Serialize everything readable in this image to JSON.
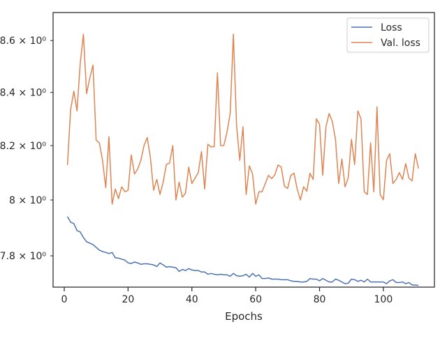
{
  "chart_data": {
    "type": "line",
    "title": "",
    "xlabel": "Epochs",
    "ylabel": "",
    "yscale": "log",
    "xlim": [
      -3.5,
      116
    ],
    "ylim": [
      7.69,
      8.71
    ],
    "grid": false,
    "legend_position": "top-right",
    "x_ticks": [
      {
        "value": 0,
        "label": "0"
      },
      {
        "value": 20,
        "label": "20"
      },
      {
        "value": 40,
        "label": "40"
      },
      {
        "value": 60,
        "label": "60"
      },
      {
        "value": 80,
        "label": "80"
      },
      {
        "value": 100,
        "label": "100"
      }
    ],
    "y_ticks": [
      {
        "value": 7.8,
        "label": "7.8 × 10⁰"
      },
      {
        "value": 8.0,
        "label": "8 × 10⁰"
      },
      {
        "value": 8.2,
        "label": "8.2 × 10⁰"
      },
      {
        "value": 8.4,
        "label": "8.4 × 10⁰"
      },
      {
        "value": 8.6,
        "label": "8.6 × 10⁰"
      }
    ],
    "x": [
      1,
      2,
      3,
      4,
      5,
      6,
      7,
      8,
      9,
      10,
      11,
      12,
      13,
      14,
      15,
      16,
      17,
      18,
      19,
      20,
      21,
      22,
      23,
      24,
      25,
      26,
      27,
      28,
      29,
      30,
      31,
      32,
      33,
      34,
      35,
      36,
      37,
      38,
      39,
      40,
      41,
      42,
      43,
      44,
      45,
      46,
      47,
      48,
      49,
      50,
      51,
      52,
      53,
      54,
      55,
      56,
      57,
      58,
      59,
      60,
      61,
      62,
      63,
      64,
      65,
      66,
      67,
      68,
      69,
      70,
      71,
      72,
      73,
      74,
      75,
      76,
      77,
      78,
      79,
      80,
      81,
      82,
      83,
      84,
      85,
      86,
      87,
      88,
      89,
      90,
      91,
      92,
      93,
      94,
      95,
      96,
      97,
      98,
      99,
      100,
      101,
      102,
      103,
      104,
      105,
      106,
      107,
      108,
      109,
      110,
      111
    ],
    "series": [
      {
        "name": "Loss",
        "color": "#4c72b0",
        "values": [
          7.94,
          7.92,
          7.915,
          7.89,
          7.885,
          7.865,
          7.85,
          7.845,
          7.84,
          7.83,
          7.82,
          7.815,
          7.812,
          7.808,
          7.812,
          7.793,
          7.792,
          7.788,
          7.785,
          7.775,
          7.773,
          7.778,
          7.775,
          7.77,
          7.772,
          7.772,
          7.77,
          7.768,
          7.762,
          7.775,
          7.768,
          7.76,
          7.762,
          7.76,
          7.758,
          7.745,
          7.752,
          7.748,
          7.755,
          7.75,
          7.748,
          7.748,
          7.743,
          7.743,
          7.735,
          7.738,
          7.735,
          7.733,
          7.735,
          7.733,
          7.733,
          7.728,
          7.738,
          7.73,
          7.728,
          7.73,
          7.735,
          7.725,
          7.738,
          7.728,
          7.733,
          7.72,
          7.72,
          7.722,
          7.718,
          7.718,
          7.718,
          7.716,
          7.716,
          7.716,
          7.712,
          7.71,
          7.71,
          7.708,
          7.708,
          7.71,
          7.72,
          7.718,
          7.718,
          7.712,
          7.72,
          7.714,
          7.708,
          7.708,
          7.718,
          7.714,
          7.708,
          7.702,
          7.704,
          7.718,
          7.716,
          7.71,
          7.714,
          7.708,
          7.718,
          7.708,
          7.708,
          7.708,
          7.708,
          7.708,
          7.702,
          7.712,
          7.716,
          7.706,
          7.706,
          7.708,
          7.702,
          7.706,
          7.698,
          7.697,
          7.696
        ]
      },
      {
        "name": "Val. loss",
        "color": "#dd8452",
        "values": [
          8.128,
          8.335,
          8.405,
          8.33,
          8.51,
          8.625,
          8.395,
          8.455,
          8.505,
          8.22,
          8.21,
          8.145,
          8.045,
          8.233,
          7.985,
          8.04,
          8.005,
          8.048,
          8.03,
          8.035,
          8.165,
          8.095,
          8.113,
          8.145,
          8.2,
          8.23,
          8.155,
          8.035,
          8.075,
          8.02,
          8.065,
          8.13,
          8.135,
          8.2,
          8,
          8.065,
          8.01,
          8.025,
          8.12,
          8.06,
          8.08,
          8.1,
          8.178,
          8.04,
          8.205,
          8.195,
          8.196,
          8.475,
          8.2,
          8.2,
          8.25,
          8.32,
          8.625,
          8.275,
          8.145,
          8.27,
          8.02,
          8.125,
          8.095,
          7.985,
          8.03,
          8.03,
          8.06,
          8.09,
          8.078,
          8.092,
          8.128,
          8.12,
          8.05,
          8.042,
          8.09,
          8.098,
          8.04,
          8,
          8.048,
          8.032,
          8.098,
          8.075,
          8.3,
          8.28,
          8.09,
          8.27,
          8.32,
          8.29,
          8.223,
          8.06,
          8.15,
          8.048,
          8.082,
          8.223,
          8.13,
          8.33,
          8.3,
          8.03,
          8.02,
          8.21,
          8.03,
          8.345,
          8.02,
          8.001,
          8.145,
          8.17,
          8.06,
          8.075,
          8.1,
          8.075,
          8.133,
          8.08,
          8.07,
          8.17,
          8.115
        ]
      }
    ]
  }
}
